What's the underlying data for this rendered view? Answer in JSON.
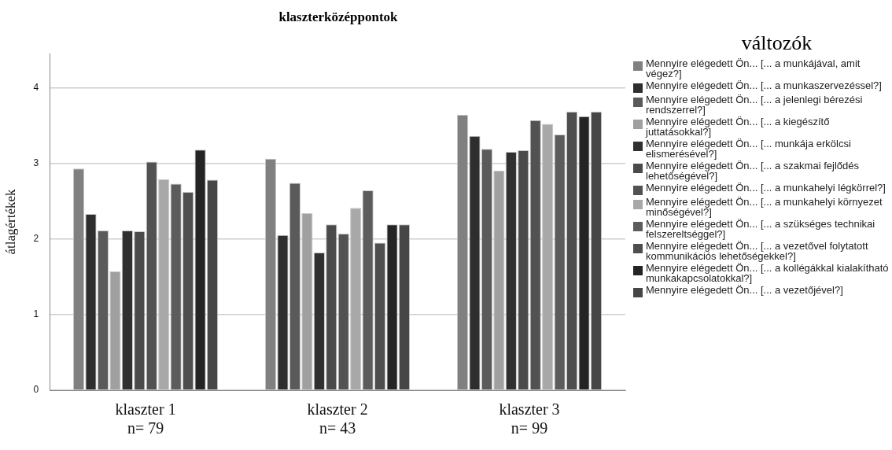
{
  "chart_data": {
    "type": "bar",
    "title": "klaszterközéppontok",
    "ylabel": "átlagértékek",
    "legend_title": "változók",
    "categories": [
      "klaszter 1\nn= 79",
      "klaszter 2\nn= 43",
      "klaszter 3\nn= 99"
    ],
    "ylim": [
      0,
      4.45
    ],
    "yticks": [
      0,
      1,
      2,
      3,
      4
    ],
    "grid": "y",
    "legend": "right",
    "series": [
      {
        "name": "Mennyire elégedett Ön...  [... a munkájával, amit végez?]",
        "color": "#808080",
        "values": [
          2.93,
          3.06,
          3.64
        ]
      },
      {
        "name": "Mennyire elégedett Ön...  [... a munkaszervezéssel?]",
        "color": "#2e2e2e",
        "values": [
          2.33,
          2.05,
          3.36
        ]
      },
      {
        "name": "Mennyire elégedett Ön...  [... a jelenlegi bérezési rendszerrel?]",
        "color": "#5a5a5a",
        "values": [
          2.11,
          2.74,
          3.19
        ]
      },
      {
        "name": "Mennyire elégedett Ön...  [... a kiegészítő juttatásokkal?]",
        "color": "#a0a0a0",
        "values": [
          1.57,
          2.34,
          2.9
        ]
      },
      {
        "name": "Mennyire elégedett Ön...  [... munkája erkölcsi elismerésével?]",
        "color": "#303030",
        "values": [
          2.11,
          1.82,
          3.15
        ]
      },
      {
        "name": "Mennyire elégedett Ön...  [... a szakmai fejlődés lehetőségével?]",
        "color": "#4a4a4a",
        "values": [
          2.1,
          2.19,
          3.17
        ]
      },
      {
        "name": "Mennyire elégedett Ön...  [... a munkahelyi légkörrel?]",
        "color": "#525252",
        "values": [
          3.02,
          2.07,
          3.57
        ]
      },
      {
        "name": "Mennyire elégedett Ön...  [... a munkahelyi környezet minőségével?]",
        "color": "#a8a8a8",
        "values": [
          2.79,
          2.41,
          3.52
        ]
      },
      {
        "name": "Mennyire elégedett Ön...  [... a szükséges technikai felszereltséggel?]",
        "color": "#5c5c5c",
        "values": [
          2.73,
          2.64,
          3.38
        ]
      },
      {
        "name": "Mennyire elégedett Ön...  [... a vezetővel folytatott kommunikációs lehetőségekkel?]",
        "color": "#4e4e4e",
        "values": [
          2.62,
          1.95,
          3.68
        ]
      },
      {
        "name": "Mennyire elégedett Ön...  [... a kollégákkal kialakítható munkakapcsolatokkal?]",
        "color": "#242424",
        "values": [
          3.18,
          2.19,
          3.62
        ]
      },
      {
        "name": "Mennyire elégedett Ön...  [... a vezetőjével?]",
        "color": "#464646",
        "values": [
          2.78,
          2.19,
          3.68
        ]
      }
    ]
  }
}
